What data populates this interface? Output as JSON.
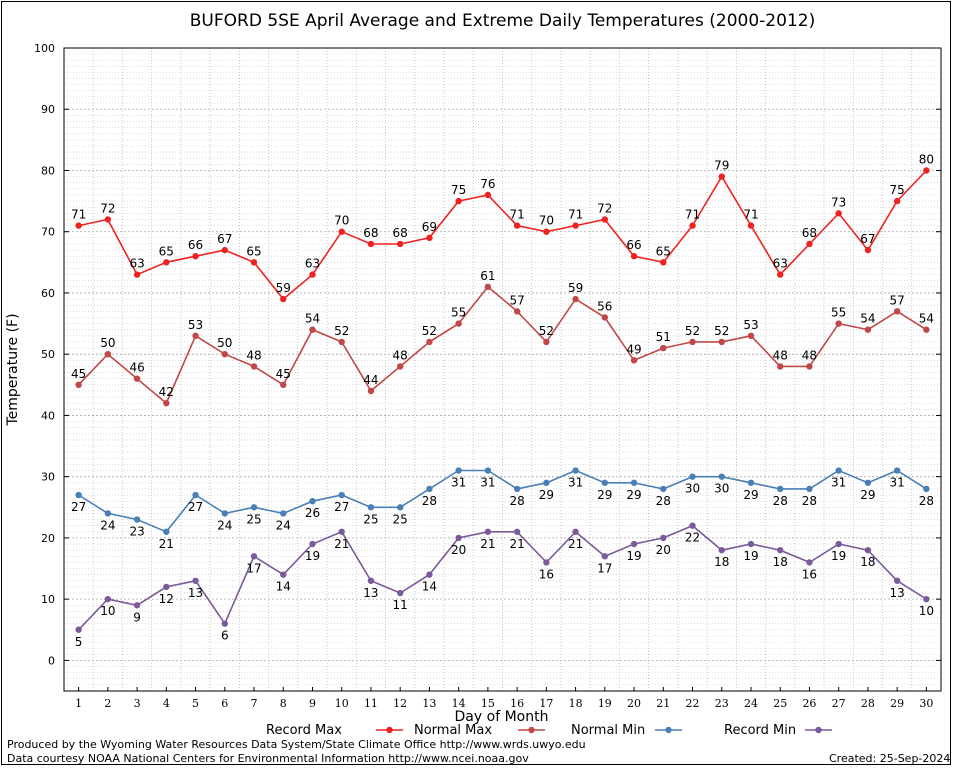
{
  "chart_data": {
    "type": "line",
    "title": "BUFORD 5SE April Average and Extreme Daily Temperatures (2000-2012)",
    "xlabel": "Day of Month",
    "ylabel": "Temperature (F)",
    "ylim": [
      -5,
      100
    ],
    "yticks": [
      0,
      10,
      20,
      30,
      40,
      50,
      60,
      70,
      80,
      90,
      100
    ],
    "x": [
      1,
      2,
      3,
      4,
      5,
      6,
      7,
      8,
      9,
      10,
      11,
      12,
      13,
      14,
      15,
      16,
      17,
      18,
      19,
      20,
      21,
      22,
      23,
      24,
      25,
      26,
      27,
      28,
      29,
      30
    ],
    "grid": true,
    "legend_position": "bottom",
    "series": [
      {
        "name": "Record Max",
        "color": "#ee2222",
        "values": [
          71,
          72,
          63,
          65,
          66,
          67,
          65,
          59,
          63,
          70,
          68,
          68,
          69,
          75,
          76,
          71,
          70,
          71,
          72,
          66,
          65,
          71,
          79,
          71,
          63,
          68,
          73,
          67,
          75,
          80
        ]
      },
      {
        "name": "Normal Max",
        "color": "#c04848",
        "values": [
          45,
          50,
          46,
          42,
          53,
          50,
          48,
          45,
          54,
          52,
          44,
          48,
          52,
          55,
          61,
          57,
          52,
          59,
          56,
          49,
          51,
          52,
          52,
          53,
          48,
          48,
          55,
          54,
          57,
          54
        ]
      },
      {
        "name": "Normal Min",
        "color": "#4a7fb5",
        "values": [
          27,
          24,
          23,
          21,
          27,
          24,
          25,
          24,
          26,
          27,
          25,
          25,
          28,
          31,
          31,
          28,
          29,
          31,
          29,
          29,
          28,
          30,
          30,
          29,
          28,
          28,
          31,
          29,
          31,
          28
        ]
      },
      {
        "name": "Record Min",
        "color": "#7a5a9a",
        "values": [
          5,
          10,
          9,
          12,
          13,
          6,
          17,
          14,
          19,
          21,
          13,
          11,
          14,
          20,
          21,
          21,
          16,
          21,
          17,
          19,
          20,
          22,
          18,
          19,
          18,
          16,
          19,
          18,
          13,
          10
        ]
      }
    ]
  },
  "footer": {
    "producer": "Produced by the Wyoming Water Resources Data System/State Climate Office http://www.wrds.uwyo.edu",
    "courtesy": "Data courtesy NOAA National Centers for Environmental Information http://www.ncei.noaa.gov",
    "created": "Created:  25-Sep-2024"
  }
}
